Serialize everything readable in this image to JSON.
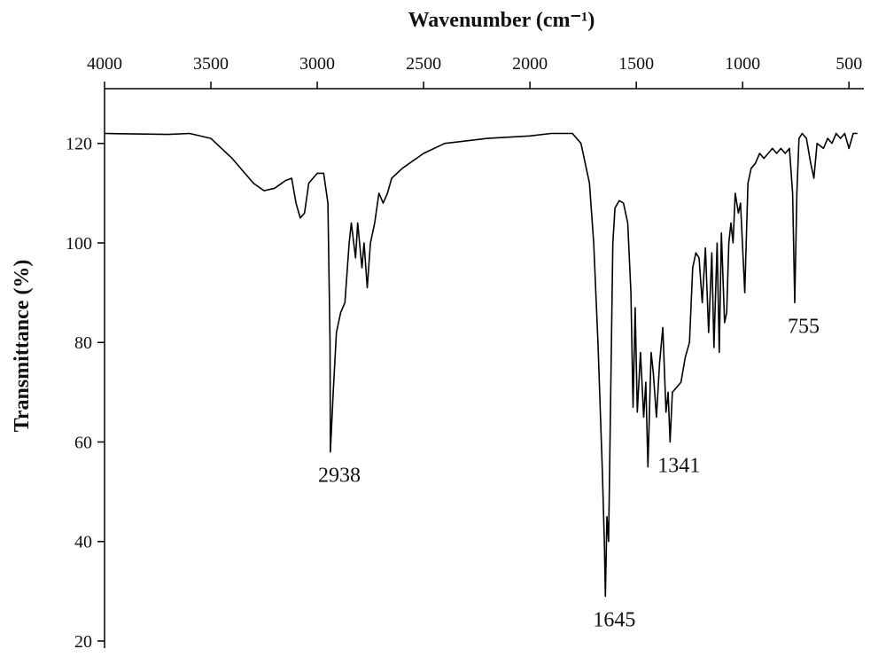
{
  "chart_data": {
    "type": "line",
    "x_label": "Wavenumber (cm⁻¹)",
    "y_label": "Transmittance (%)",
    "xlim": [
      4000,
      430
    ],
    "xticks": [
      4000,
      3500,
      3000,
      2500,
      2000,
      1500,
      1000,
      500
    ],
    "ylim": [
      20,
      131
    ],
    "yticks": [
      20,
      40,
      60,
      80,
      100,
      120
    ],
    "x": [
      4000,
      3700,
      3600,
      3500,
      3400,
      3300,
      3250,
      3200,
      3150,
      3120,
      3100,
      3080,
      3060,
      3040,
      3000,
      2970,
      2950,
      2940,
      2938,
      2925,
      2910,
      2890,
      2870,
      2850,
      2840,
      2820,
      2810,
      2790,
      2780,
      2765,
      2750,
      2730,
      2710,
      2690,
      2670,
      2650,
      2600,
      2500,
      2400,
      2200,
      2000,
      1900,
      1800,
      1760,
      1720,
      1700,
      1680,
      1660,
      1650,
      1645,
      1638,
      1630,
      1620,
      1610,
      1600,
      1580,
      1560,
      1540,
      1525,
      1515,
      1505,
      1495,
      1480,
      1465,
      1455,
      1445,
      1430,
      1420,
      1405,
      1390,
      1375,
      1360,
      1350,
      1341,
      1330,
      1310,
      1290,
      1270,
      1250,
      1235,
      1220,
      1205,
      1190,
      1175,
      1160,
      1145,
      1135,
      1120,
      1110,
      1100,
      1085,
      1075,
      1065,
      1055,
      1045,
      1035,
      1020,
      1010,
      990,
      975,
      960,
      940,
      920,
      900,
      880,
      860,
      840,
      820,
      800,
      780,
      765,
      755,
      745,
      735,
      720,
      700,
      680,
      665,
      650,
      620,
      600,
      580,
      560,
      540,
      520,
      500,
      480,
      460
    ],
    "series": [
      {
        "color": "#000000",
        "values": [
          122,
          121.8,
          122,
          121,
          117,
          112,
          110.5,
          111,
          112.5,
          113,
          108,
          105,
          106,
          112,
          114,
          114,
          108,
          80,
          58,
          70,
          82,
          86,
          88,
          100,
          104,
          97,
          104,
          95,
          100,
          91,
          100,
          104,
          110,
          108,
          110,
          113,
          115,
          118,
          120,
          121,
          121.5,
          122,
          122,
          120,
          112,
          100,
          80,
          55,
          40,
          29,
          45,
          40,
          70,
          100,
          107,
          108.5,
          108,
          104,
          90,
          67,
          87,
          66,
          78,
          65,
          72,
          55,
          78,
          74,
          65,
          76,
          83,
          66,
          70,
          60,
          70,
          71,
          72,
          77,
          80,
          95,
          98,
          97,
          88,
          99,
          82,
          98,
          79,
          100,
          78,
          102,
          84,
          86,
          100,
          104,
          100,
          110,
          106,
          108,
          90,
          112,
          115,
          116,
          118,
          117,
          118,
          119,
          118,
          119,
          118,
          119,
          110,
          88,
          110,
          121,
          122,
          121,
          116,
          113,
          120,
          119,
          121,
          120,
          122,
          121,
          122,
          119,
          122,
          122
        ]
      }
    ],
    "annotations": [
      {
        "text": "2938",
        "x": 2938,
        "y": 58
      },
      {
        "text": "1645",
        "x": 1645,
        "y": 29
      },
      {
        "text": "1341",
        "x": 1341,
        "y": 60
      },
      {
        "text": "755",
        "x": 755,
        "y": 88
      }
    ]
  }
}
